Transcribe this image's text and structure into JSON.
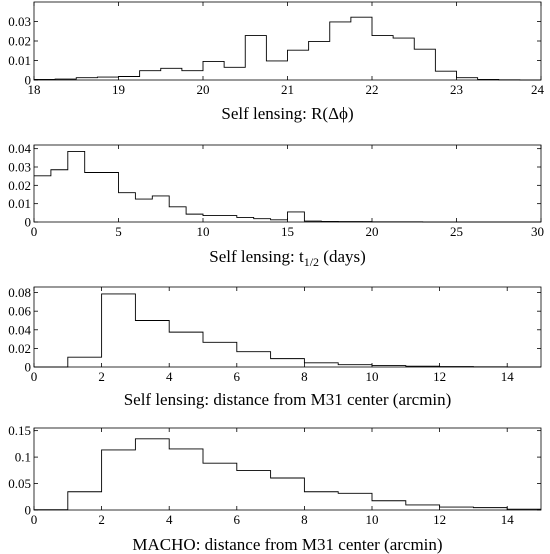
{
  "chart_data": [
    {
      "type": "histogram",
      "xlabel": "Self lensing: R(Δϕ)",
      "xlim": [
        18,
        24
      ],
      "ylim": [
        0,
        0.04
      ],
      "xticks": [
        18,
        19,
        20,
        21,
        22,
        23,
        24
      ],
      "xtick_labels": [
        "18",
        "19",
        "20",
        "21",
        "22",
        "23",
        "24"
      ],
      "yticks": [
        0,
        0.01,
        0.02,
        0.03
      ],
      "ytick_labels": [
        "0",
        "0.01",
        "0.02",
        "0.03"
      ],
      "bin_edges": [
        18,
        18.25,
        18.5,
        18.75,
        19,
        19.25,
        19.5,
        19.75,
        20,
        20.25,
        20.5,
        20.75,
        21,
        21.25,
        21.5,
        21.75,
        22,
        22.25,
        22.5,
        22.75,
        23,
        23.25,
        23.5,
        23.75,
        24
      ],
      "values": [
        0.0003,
        0.0005,
        0.0012,
        0.0015,
        0.0018,
        0.0048,
        0.006,
        0.0048,
        0.0095,
        0.0065,
        0.0228,
        0.0098,
        0.0153,
        0.0198,
        0.0298,
        0.0322,
        0.0228,
        0.0215,
        0.0158,
        0.0045,
        0.0012,
        0.0003,
        0.0001,
        0
      ]
    },
    {
      "type": "histogram",
      "xlabel": "Self lensing: t",
      "xlabel_sub": "1/2",
      "xlabel_tail": " (days)",
      "xlim": [
        0,
        30
      ],
      "ylim": [
        0,
        0.042
      ],
      "xticks": [
        0,
        5,
        10,
        15,
        20,
        25,
        30
      ],
      "xtick_labels": [
        "0",
        "5",
        "10",
        "15",
        "20",
        "25",
        "30"
      ],
      "yticks": [
        0,
        0.01,
        0.02,
        0.03,
        0.04
      ],
      "ytick_labels": [
        "0",
        "0.01",
        "0.02",
        "0.03",
        "0.04"
      ],
      "bin_edges": [
        0,
        1,
        2,
        3,
        4,
        5,
        6,
        7,
        8,
        9,
        10,
        11,
        12,
        13,
        14,
        15,
        16,
        17,
        18,
        19,
        20,
        21,
        22,
        23,
        24,
        25,
        26,
        27,
        28,
        29,
        30
      ],
      "values": [
        0.0252,
        0.0285,
        0.0385,
        0.027,
        0.027,
        0.016,
        0.0125,
        0.0142,
        0.0083,
        0.0043,
        0.0035,
        0.0035,
        0.0025,
        0.0018,
        0.0012,
        0.0055,
        0.0005,
        0.0003,
        0.0002,
        0.0002,
        0.0001,
        0.0001,
        0.0001,
        0,
        0,
        0,
        0,
        0,
        0,
        0
      ]
    },
    {
      "type": "histogram",
      "xlabel": "Self lensing: distance from M31 center (arcmin)",
      "xlim": [
        0,
        15
      ],
      "ylim": [
        0,
        0.086
      ],
      "xticks": [
        0,
        2,
        4,
        6,
        8,
        10,
        12,
        14
      ],
      "xtick_labels": [
        "0",
        "2",
        "4",
        "6",
        "8",
        "10",
        "12",
        "14"
      ],
      "yticks": [
        0,
        0.02,
        0.04,
        0.06,
        0.08
      ],
      "ytick_labels": [
        "0",
        "0.02",
        "0.04",
        "0.06",
        "0.08"
      ],
      "bin_edges": [
        0,
        1,
        2,
        3,
        4,
        5,
        6,
        7,
        8,
        9,
        10,
        11,
        12,
        13,
        14,
        15
      ],
      "values": [
        0,
        0.0105,
        0.0785,
        0.05,
        0.0375,
        0.0265,
        0.0165,
        0.009,
        0.0045,
        0.0025,
        0.0015,
        0.0008,
        0.0004,
        0.0002,
        0
      ]
    },
    {
      "type": "histogram",
      "xlabel": "MACHO: distance from M31 center (arcmin)",
      "xlim": [
        0,
        15
      ],
      "ylim": [
        0,
        0.155
      ],
      "xticks": [
        0,
        2,
        4,
        6,
        8,
        10,
        12,
        14
      ],
      "xtick_labels": [
        "0",
        "2",
        "4",
        "6",
        "8",
        "10",
        "12",
        "14"
      ],
      "yticks": [
        0,
        0.05,
        0.1,
        0.15
      ],
      "ytick_labels": [
        "0",
        "0.05",
        "0.1",
        "0.15"
      ],
      "bin_edges": [
        0,
        1,
        2,
        3,
        4,
        5,
        6,
        7,
        8,
        9,
        10,
        11,
        12,
        13,
        14,
        15
      ],
      "values": [
        0.0005,
        0.0345,
        0.1135,
        0.1345,
        0.1155,
        0.0885,
        0.0745,
        0.0605,
        0.0345,
        0.0315,
        0.0175,
        0.0095,
        0.0055,
        0.0045,
        0.0015
      ]
    }
  ]
}
